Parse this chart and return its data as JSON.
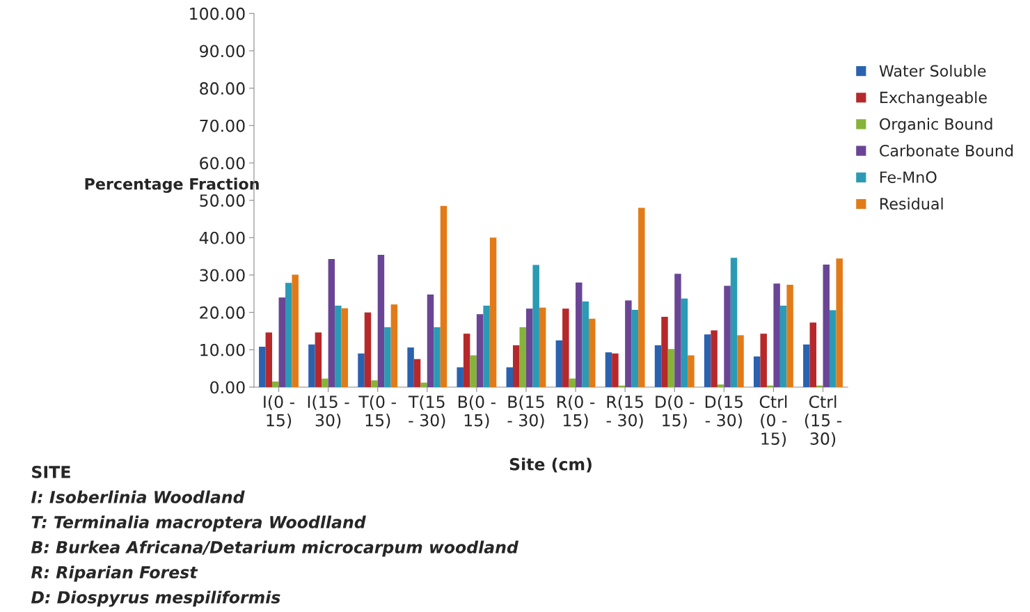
{
  "chart_data": {
    "type": "bar",
    "xlabel": "Site (cm)",
    "ylabel": "Percentage Fraction",
    "categories": [
      "I(0 -\n15)",
      "I(15 -\n30)",
      "T(0 -\n15)",
      "T(15\n- 30)",
      "B(0 -\n15)",
      "B(15\n- 30)",
      "R(0 -\n15)",
      "R(15\n- 30)",
      "D(0 -\n15)",
      "D(15\n- 30)",
      "Ctrl\n(0 -\n15)",
      "Ctrl\n(15 -\n30)"
    ],
    "series": [
      {
        "name": "Water Soluble",
        "color": "#2a62b0",
        "values": [
          10.8,
          11.4,
          9.0,
          10.6,
          5.3,
          5.3,
          12.5,
          9.3,
          11.2,
          14.1,
          8.2,
          11.4
        ]
      },
      {
        "name": "Exchangeable",
        "color": "#b7282b",
        "values": [
          14.6,
          14.6,
          20.0,
          7.5,
          14.3,
          11.2,
          21.0,
          9.0,
          18.8,
          15.2,
          14.3,
          17.3
        ]
      },
      {
        "name": "Organic Bound",
        "color": "#86b33a",
        "values": [
          1.5,
          2.3,
          1.8,
          1.2,
          8.5,
          16.0,
          2.3,
          0.4,
          10.2,
          0.7,
          0.4,
          0.4
        ]
      },
      {
        "name": "Carbonate Bound",
        "color": "#6a4595",
        "values": [
          24.0,
          34.3,
          35.4,
          24.8,
          19.5,
          21.0,
          28.0,
          23.2,
          30.3,
          27.1,
          27.7,
          32.8
        ]
      },
      {
        "name": "Fe-MnO",
        "color": "#2b9bb5",
        "values": [
          27.9,
          21.8,
          16.0,
          16.0,
          21.8,
          32.7,
          22.9,
          20.7,
          23.7,
          34.6,
          21.8,
          20.6
        ]
      },
      {
        "name": "Residual",
        "color": "#e27b17",
        "values": [
          30.1,
          21.1,
          22.1,
          48.5,
          40.0,
          21.3,
          18.3,
          48.0,
          8.5,
          13.9,
          27.4,
          34.4
        ]
      }
    ],
    "ylim": [
      0,
      100
    ],
    "yticks": [
      {
        "value": 0,
        "label": "0.00"
      },
      {
        "value": 10,
        "label": "10.00"
      },
      {
        "value": 20,
        "label": "20.00"
      },
      {
        "value": 30,
        "label": "30.00"
      },
      {
        "value": 40,
        "label": "40.00"
      },
      {
        "value": 50,
        "label": "50.00"
      },
      {
        "value": 60,
        "label": "60.00"
      },
      {
        "value": 70,
        "label": "70.00"
      },
      {
        "value": 80,
        "label": "80.00"
      },
      {
        "value": 90,
        "label": "90.00"
      },
      {
        "value": 100,
        "label": "100.00"
      }
    ],
    "grid": false,
    "legend": "right",
    "annotations": [
      "SITE",
      "I: Isoberlinia Woodland",
      "T: Terminalia macroptera Woodlland",
      "B: Burkea Africana/Detarium microcarpum woodland",
      "R: Riparian Forest",
      "D: Diospyrus mespiliformis"
    ]
  }
}
